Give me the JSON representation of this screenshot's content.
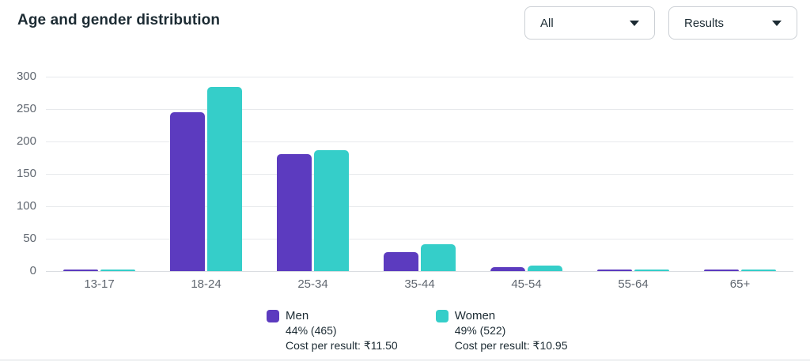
{
  "header": {
    "title": "Age and gender distribution"
  },
  "filters": {
    "breakdown_dropdown": {
      "value": "All",
      "icon": "chevron-down-icon"
    },
    "metric_dropdown": {
      "value": "Results",
      "icon": "chevron-down-icon"
    }
  },
  "chart_data": {
    "type": "bar",
    "title": "Age and gender distribution",
    "categories": [
      "13-17",
      "18-24",
      "25-34",
      "35-44",
      "45-54",
      "55-64",
      "65+"
    ],
    "series": [
      {
        "name": "Men",
        "color": "#5C3BBF",
        "values": [
          2,
          245,
          180,
          29,
          6,
          2,
          1
        ],
        "total": 465,
        "share": "44%",
        "cost_per_result": "₹11.50"
      },
      {
        "name": "Women",
        "color": "#35CEC9",
        "values": [
          1,
          284,
          186,
          41,
          8,
          1,
          1
        ],
        "total": 522,
        "share": "49%",
        "cost_per_result": "₹10.95"
      }
    ],
    "xlabel": "",
    "ylabel": "",
    "ylim": [
      0,
      300
    ],
    "yticks": [
      0,
      50,
      100,
      150,
      200,
      250,
      300
    ],
    "grid": true,
    "legend_position": "bottom"
  },
  "legend": {
    "men": {
      "label": "Men",
      "share": "44% (465)",
      "cost": "Cost per result: ₹11.50",
      "color": "#5C3BBF"
    },
    "women": {
      "label": "Women",
      "share": "49% (522)",
      "cost": "Cost per result: ₹10.95",
      "color": "#35CEC9"
    }
  },
  "colors": {
    "title_text": "#1c2b33",
    "axis_text": "#606770",
    "gridline": "#e7e9ec",
    "dropdown_border": "#ccd0d5"
  }
}
